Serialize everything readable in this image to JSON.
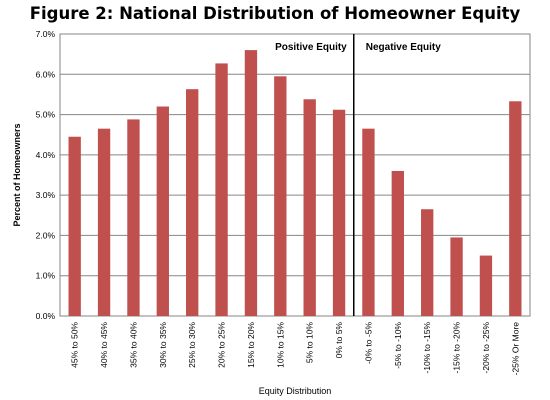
{
  "chart_data": {
    "type": "bar",
    "title": "Figure 2: National Distribution of Homeowner Equity",
    "xlabel": "Equity Distribution",
    "ylabel": "Percent of Homeowners",
    "ylim": [
      0,
      7
    ],
    "yticks": [
      "0.0%",
      "1.0%",
      "2.0%",
      "3.0%",
      "4.0%",
      "5.0%",
      "6.0%",
      "7.0%"
    ],
    "grid": true,
    "bar_color": "#c0504d",
    "categories": [
      "45% to 50%",
      "40% to 45%",
      "35% to 40%",
      "30% to 35%",
      "25% to 30%",
      "20% to 25%",
      "15% to 20%",
      "10% to 15%",
      "5% to 10%",
      "0% to 5%",
      "-0% to -5%",
      "-5% to -10%",
      "-10% to -15%",
      "-15% to -20%",
      "-20% to -25%",
      "-25% Or More"
    ],
    "values": [
      4.45,
      4.65,
      4.88,
      5.2,
      5.63,
      6.27,
      6.6,
      5.95,
      5.38,
      5.12,
      4.65,
      3.6,
      2.65,
      1.95,
      1.5,
      5.33
    ],
    "divider_after_index": 9,
    "annotations": [
      "Positive Equity",
      "Negative Equity"
    ]
  }
}
